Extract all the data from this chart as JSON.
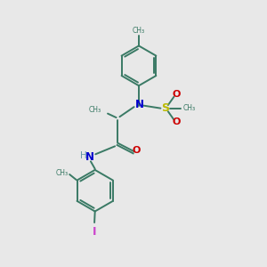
{
  "bg_color": "#e8e8e8",
  "bond_color": "#3a7a65",
  "N_color": "#0000cc",
  "O_color": "#cc0000",
  "S_color": "#bbbb00",
  "I_color": "#cc44cc",
  "H_color": "#6699aa",
  "figsize": [
    3.0,
    3.0
  ],
  "dpi": 100,
  "xlim": [
    0,
    10
  ],
  "ylim": [
    0,
    10
  ]
}
